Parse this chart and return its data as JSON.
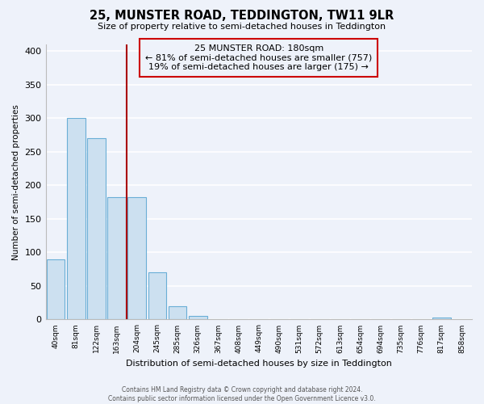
{
  "title_line1": "25, MUNSTER ROAD, TEDDINGTON, TW11 9LR",
  "title_line2": "Size of property relative to semi-detached houses in Teddington",
  "bar_labels": [
    "40sqm",
    "81sqm",
    "122sqm",
    "163sqm",
    "204sqm",
    "245sqm",
    "285sqm",
    "326sqm",
    "367sqm",
    "408sqm",
    "449sqm",
    "490sqm",
    "531sqm",
    "572sqm",
    "613sqm",
    "654sqm",
    "694sqm",
    "735sqm",
    "776sqm",
    "817sqm",
    "858sqm"
  ],
  "bar_values": [
    90,
    300,
    270,
    182,
    182,
    70,
    20,
    5,
    0,
    0,
    0,
    0,
    0,
    0,
    0,
    0,
    0,
    0,
    0,
    3,
    0
  ],
  "bar_color": "#cce0f0",
  "bar_edge_color": "#6aaed6",
  "xlabel": "Distribution of semi-detached houses by size in Teddington",
  "ylabel": "Number of semi-detached properties",
  "ylim": [
    0,
    410
  ],
  "yticks": [
    0,
    50,
    100,
    150,
    200,
    250,
    300,
    350,
    400
  ],
  "annotation_title": "25 MUNSTER ROAD: 180sqm",
  "annotation_line2": "← 81% of semi-detached houses are smaller (757)",
  "annotation_line3": "19% of semi-detached houses are larger (175) →",
  "vline_color": "#aa0000",
  "footer_line1": "Contains HM Land Registry data © Crown copyright and database right 2024.",
  "footer_line2": "Contains public sector information licensed under the Open Government Licence v3.0.",
  "background_color": "#eef2fa"
}
